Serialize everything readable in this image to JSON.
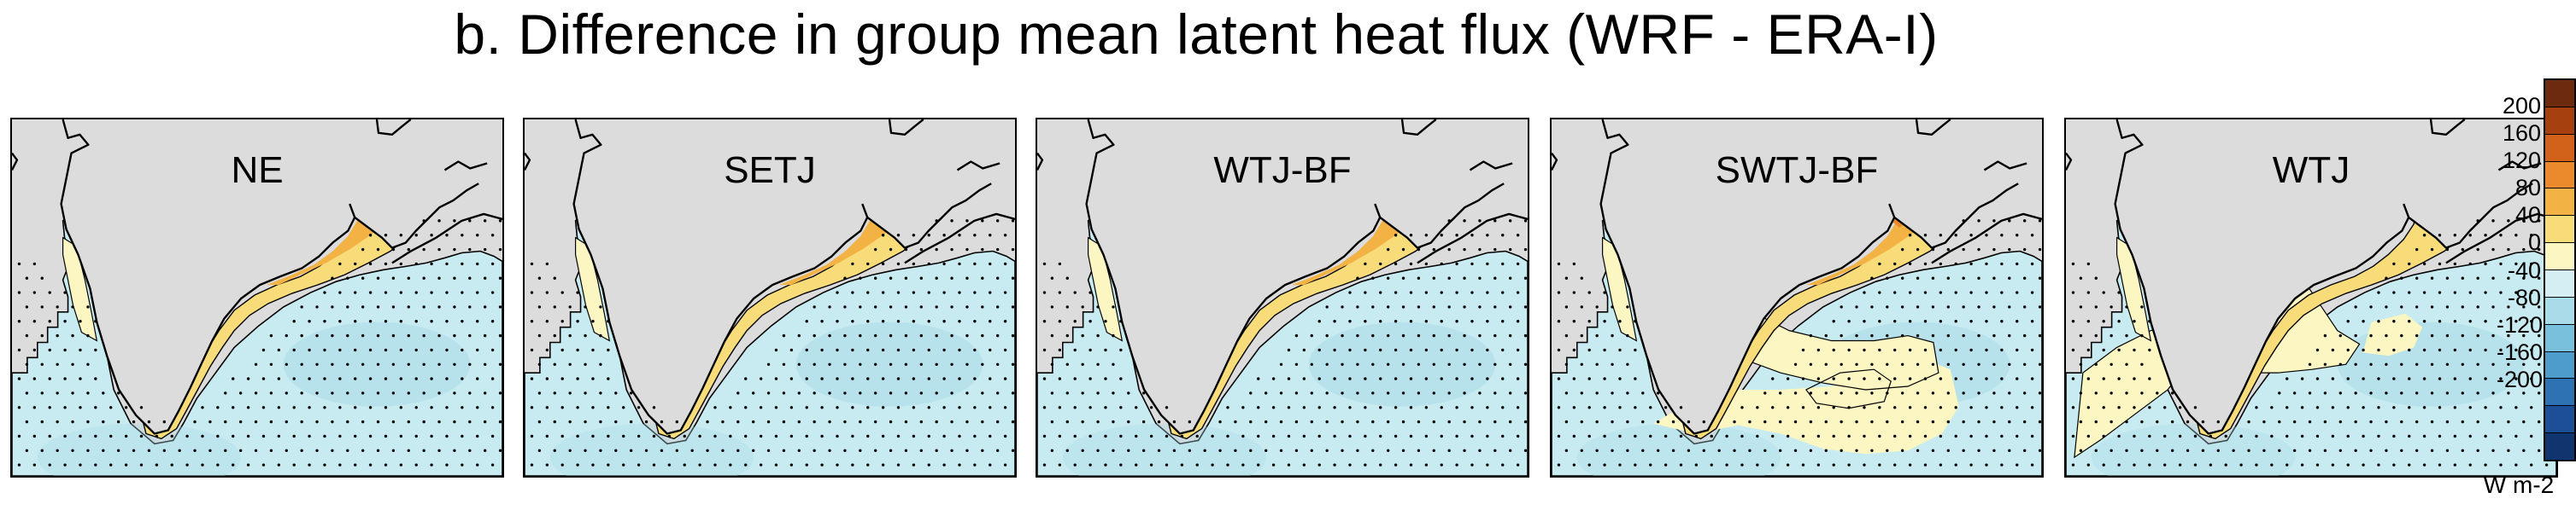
{
  "title": "b. Difference in group mean latent heat flux (WRF - ERA-I)",
  "panels": [
    {
      "label": "NE"
    },
    {
      "label": "SETJ"
    },
    {
      "label": "WTJ-BF"
    },
    {
      "label": "SWTJ-BF"
    },
    {
      "label": "WTJ"
    }
  ],
  "colorbar": {
    "unit": "W m-2",
    "ticks": [
      "200",
      "160",
      "120",
      "80",
      "40",
      "0",
      "-40",
      "-80",
      "-120",
      "-160",
      "-200"
    ],
    "colors": [
      "#6e2a0e",
      "#a6400f",
      "#d2611a",
      "#eb8a2c",
      "#f3b244",
      "#f8dc7a",
      "#fbf6c2",
      "#d4eef4",
      "#a9dbe8",
      "#78c0dc",
      "#4d9ccb",
      "#2f72b3",
      "#1c4f98",
      "#10356e"
    ]
  },
  "colors": {
    "land": "#dcdcdc",
    "ocean_neg": "#c7ebf1",
    "ocean_neg_deep": "#a9dbe8",
    "pos_light": "#fbf6c2",
    "pos_mid": "#f8dc7a",
    "pos_strong": "#f3b244",
    "pos_stronger": "#eb8a2c"
  }
}
